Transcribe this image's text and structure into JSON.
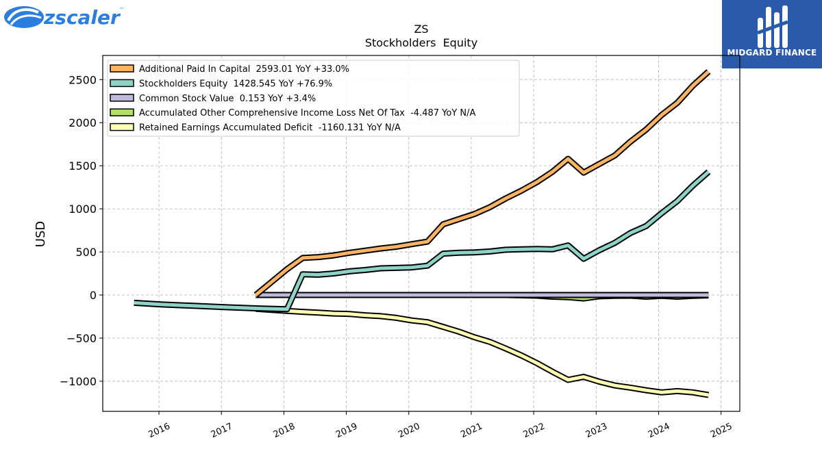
{
  "brand": {
    "logo_text": "zscaler",
    "logo_tm": "™",
    "badge_text": "MIDGARD FINANCE"
  },
  "chart_data": {
    "type": "line",
    "title": "ZS",
    "subtitle": "Stockholders  Equity",
    "ylabel": "USD",
    "xlabel": "",
    "xlim": [
      2015.1,
      2025.3
    ],
    "ylim": [
      -1350,
      2780
    ],
    "grid": true,
    "legend_position": "top-left",
    "x_ticks": [
      2016,
      2017,
      2018,
      2019,
      2020,
      2021,
      2022,
      2023,
      2024,
      2025
    ],
    "x_tick_labels": [
      "2016",
      "2017",
      "2018",
      "2019",
      "2020",
      "2021",
      "2022",
      "2023",
      "2024",
      "2025"
    ],
    "y_ticks": [
      -1000,
      -500,
      0,
      500,
      1000,
      1500,
      2000,
      2500
    ],
    "y_tick_labels": [
      "−1000",
      "−500",
      "0",
      "500",
      "1000",
      "1500",
      "2000",
      "2500"
    ],
    "series": [
      {
        "name": "Retained Earnings Accumulated Deficit",
        "legend": "Retained Earnings Accumulated Deficit  -1160.131 YoY N/A",
        "color": "#ffffb3",
        "x": [
          2017.55,
          2018.05,
          2018.3,
          2018.55,
          2018.8,
          2019.05,
          2019.3,
          2019.55,
          2019.8,
          2020.05,
          2020.3,
          2020.55,
          2020.8,
          2021.05,
          2021.3,
          2021.55,
          2021.8,
          2022.05,
          2022.3,
          2022.55,
          2022.8,
          2023.05,
          2023.3,
          2023.55,
          2023.8,
          2024.05,
          2024.3,
          2024.55,
          2024.8
        ],
        "values": [
          -160,
          -185,
          -195,
          -205,
          -215,
          -220,
          -235,
          -245,
          -265,
          -295,
          -315,
          -370,
          -425,
          -490,
          -545,
          -620,
          -700,
          -790,
          -890,
          -985,
          -950,
          -1005,
          -1050,
          -1075,
          -1105,
          -1130,
          -1115,
          -1130,
          -1160
        ]
      },
      {
        "name": "Accumulated Other Comprehensive Income Loss Net Of Tax",
        "legend": "Accumulated Other Comprehensive Income Loss Net Of Tax  -4.487 YoY N/A",
        "color": "#b3de69",
        "x": [
          2017.55,
          2018.05,
          2018.55,
          2019.05,
          2019.55,
          2020.05,
          2020.55,
          2021.05,
          2021.55,
          2022.05,
          2022.3,
          2022.55,
          2022.8,
          2023.05,
          2023.3,
          2023.55,
          2023.8,
          2024.05,
          2024.3,
          2024.55,
          2024.8
        ],
        "values": [
          0,
          0,
          0,
          0,
          0,
          0,
          0,
          0,
          0,
          -8,
          -20,
          -25,
          -40,
          -15,
          -10,
          -8,
          -20,
          -10,
          -20,
          -10,
          -4.5
        ]
      },
      {
        "name": "Common Stock Value",
        "legend": "Common Stock Value  0.153 YoY +3.4%",
        "color": "#bebada",
        "x": [
          2017.55,
          2018.05,
          2019.05,
          2020.05,
          2021.05,
          2022.05,
          2023.05,
          2024.05,
          2024.8
        ],
        "values": [
          0.1,
          0.1,
          0.12,
          0.13,
          0.14,
          0.14,
          0.15,
          0.15,
          0.153
        ]
      },
      {
        "name": "Stockholders Equity",
        "legend": "Stockholders Equity  1428.545 YoY +76.9%",
        "color": "#8dd3c7",
        "x": [
          2015.6,
          2016.05,
          2016.55,
          2017.05,
          2017.55,
          2018.05,
          2018.3,
          2018.55,
          2018.8,
          2019.05,
          2019.3,
          2019.55,
          2019.8,
          2020.05,
          2020.3,
          2020.55,
          2020.8,
          2021.05,
          2021.3,
          2021.55,
          2021.8,
          2022.05,
          2022.3,
          2022.55,
          2022.8,
          2023.05,
          2023.3,
          2023.55,
          2023.8,
          2024.05,
          2024.3,
          2024.55,
          2024.8
        ],
        "values": [
          -90,
          -110,
          -125,
          -140,
          -155,
          -165,
          240,
          235,
          250,
          275,
          290,
          310,
          315,
          320,
          340,
          480,
          490,
          495,
          505,
          525,
          530,
          535,
          530,
          575,
          420,
          520,
          605,
          720,
          800,
          950,
          1090,
          1270,
          1430
        ]
      },
      {
        "name": "Additional Paid In Capital",
        "legend": "Additional Paid In Capital  2593.01 YoY +33.0%",
        "color": "#fdb462",
        "x": [
          2017.55,
          2018.05,
          2018.3,
          2018.55,
          2018.8,
          2019.05,
          2019.3,
          2019.55,
          2019.8,
          2020.05,
          2020.3,
          2020.55,
          2020.8,
          2021.05,
          2021.3,
          2021.55,
          2021.8,
          2022.05,
          2022.3,
          2022.55,
          2022.8,
          2023.05,
          2023.3,
          2023.55,
          2023.8,
          2024.05,
          2024.3,
          2024.55,
          2024.8
        ],
        "values": [
          0,
          300,
          430,
          440,
          460,
          490,
          515,
          540,
          560,
          590,
          620,
          820,
          880,
          940,
          1020,
          1120,
          1210,
          1310,
          1430,
          1580,
          1420,
          1520,
          1620,
          1780,
          1920,
          2090,
          2230,
          2430,
          2593
        ]
      }
    ],
    "legend_order": [
      "Additional Paid In Capital",
      "Stockholders Equity",
      "Common Stock Value",
      "Accumulated Other Comprehensive Income Loss Net Of Tax",
      "Retained Earnings Accumulated Deficit"
    ]
  }
}
